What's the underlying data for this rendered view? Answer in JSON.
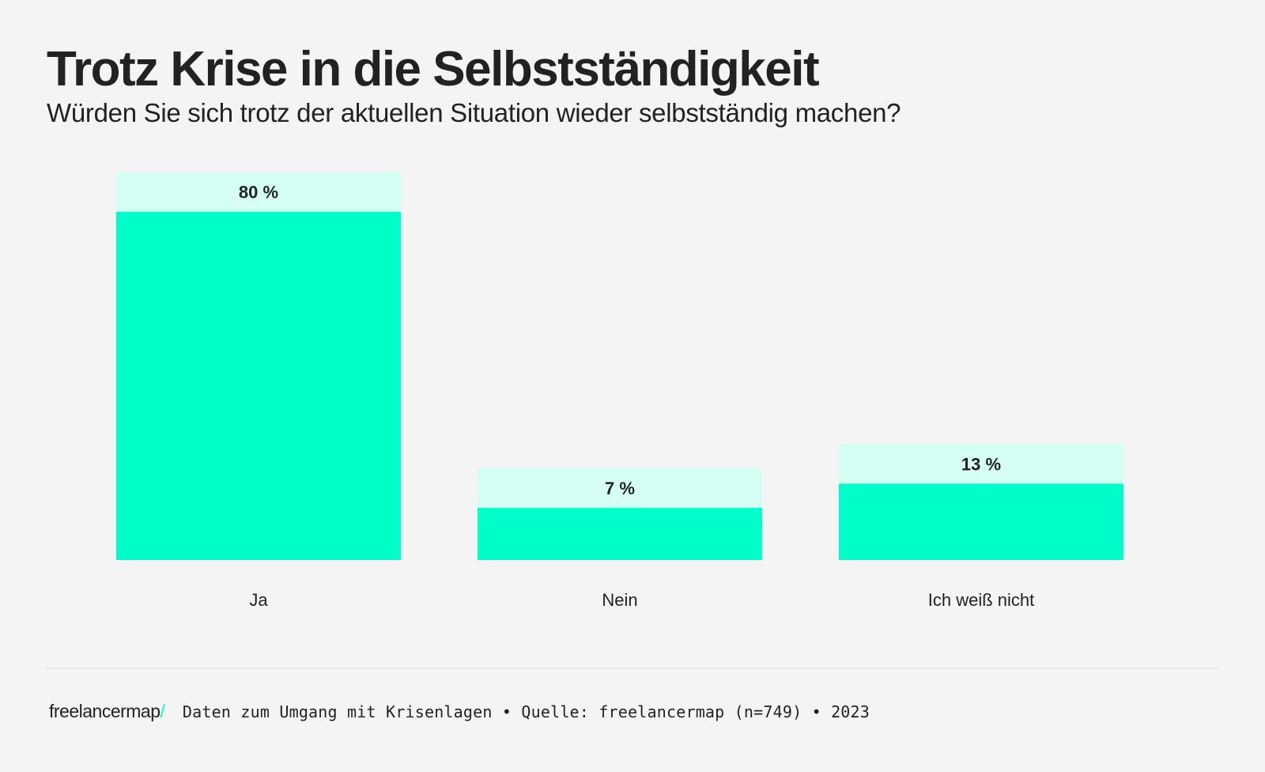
{
  "header": {
    "title": "Trotz Krise in die Selbstständigkeit",
    "subtitle": "Würden Sie sich trotz der aktuellen Situation wieder selbstständig machen?"
  },
  "colors": {
    "bar_fill": "#00ffc8",
    "label_box": "#d5fff3",
    "text": "#222222",
    "background": "#f4f4f4"
  },
  "chart_data": {
    "type": "bar",
    "title": "Trotz Krise in die Selbstständigkeit",
    "subtitle": "Würden Sie sich trotz der aktuellen Situation wieder selbstständig machen?",
    "categories": [
      "Ja",
      "Nein",
      "Ich weiß nicht"
    ],
    "values": [
      80,
      7,
      13
    ],
    "value_labels": [
      "80 %",
      "7 %",
      "13 %"
    ],
    "unit": "%",
    "xlabel": "",
    "ylabel": "",
    "ylim": [
      0,
      100
    ],
    "grid": false,
    "legend": "none"
  },
  "footer": {
    "logo_text": "freelancermap",
    "logo_slash": "/",
    "source": "Daten zum Umgang mit Krisenlagen • Quelle: freelancermap (n=749) • 2023"
  }
}
